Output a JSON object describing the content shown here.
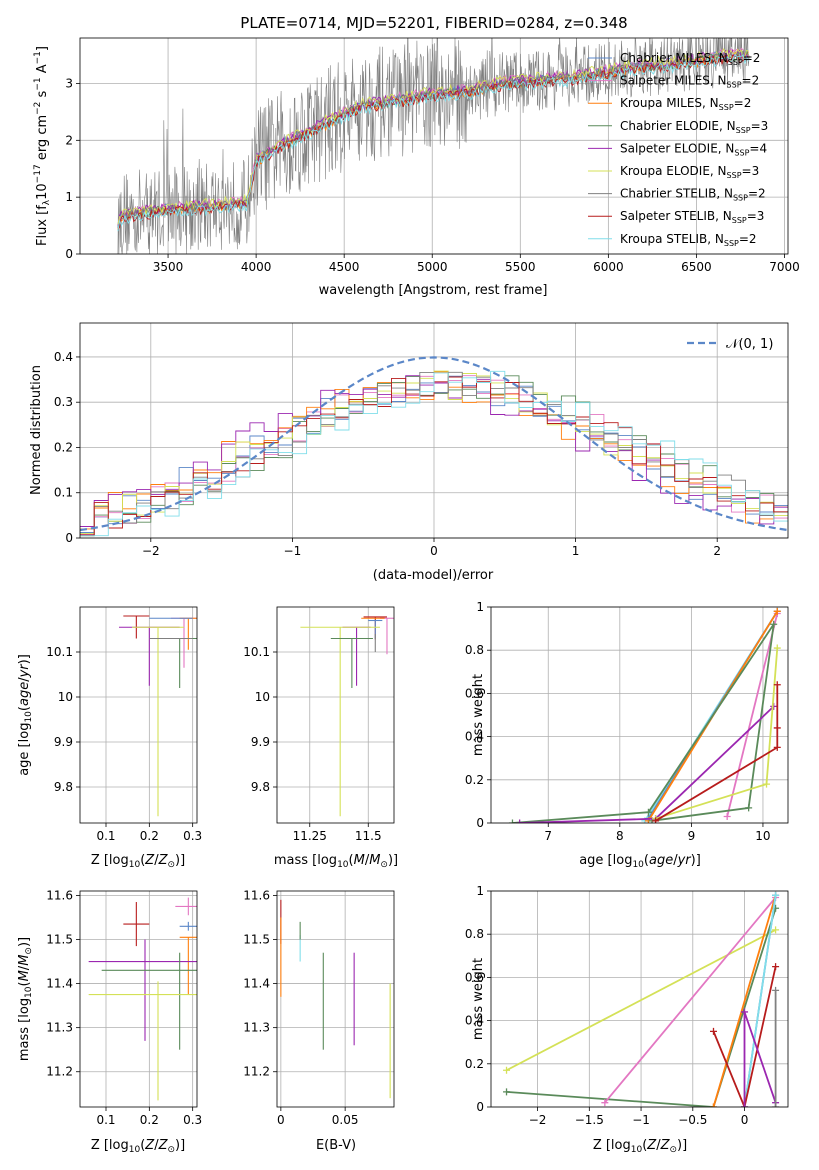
{
  "chart_data": [
    {
      "id": "spectrum",
      "type": "line",
      "title": "PLATE=0714, MJD=52201, FIBERID=0284, z=0.348",
      "xlabel": "wavelength [Angstrom, rest frame]",
      "ylabel": "Flux [fλ 10⁻¹⁷ erg cm⁻² s⁻¹ A⁻¹]",
      "xlim": [
        3000,
        7020
      ],
      "ylim": [
        0,
        3.8
      ],
      "xticks": [
        3500,
        4000,
        4500,
        5000,
        5500,
        6000,
        6500,
        7000
      ],
      "yticks": [
        0,
        1,
        2,
        3
      ],
      "data_range": [
        3215,
        6800
      ],
      "continuum": {
        "x": [
          3215,
          3250,
          3400,
          3600,
          3800,
          3950,
          4000,
          4200,
          4400,
          4600,
          4800,
          5000,
          5200,
          5400,
          5600,
          5800,
          6000,
          6200,
          6400,
          6600,
          6800
        ],
        "y": [
          0.55,
          0.68,
          0.74,
          0.8,
          0.85,
          0.9,
          1.65,
          2.0,
          2.3,
          2.6,
          2.7,
          2.8,
          2.85,
          3.0,
          3.05,
          3.1,
          3.2,
          3.3,
          3.35,
          3.45,
          3.5
        ]
      },
      "legend": [
        {
          "label": "Chabrier MILES, N",
          "sub": "SSP",
          "suffix": "=2",
          "color": "#5b87c8",
          "offset": 0.02
        },
        {
          "label": "Salpeter MILES, N",
          "sub": "SSP",
          "suffix": "=2",
          "color": "#e377c2",
          "offset": 0.05
        },
        {
          "label": "Kroupa MILES, N",
          "sub": "SSP",
          "suffix": "=2",
          "color": "#ff7f0e",
          "offset": -0.02
        },
        {
          "label": "Chabrier ELODIE, N",
          "sub": "SSP",
          "suffix": "=3",
          "color": "#5a8a5a",
          "offset": 0.0
        },
        {
          "label": "Salpeter ELODIE, N",
          "sub": "SSP",
          "suffix": "=4",
          "color": "#9b27b0",
          "offset": 0.04
        },
        {
          "label": "Kroupa ELODIE, N",
          "sub": "SSP",
          "suffix": "=3",
          "color": "#d4e157",
          "offset": 0.06
        },
        {
          "label": "Chabrier STELIB, N",
          "sub": "SSP",
          "suffix": "=2",
          "color": "#808080",
          "offset": 0.0
        },
        {
          "label": "Salpeter STELIB, N",
          "sub": "SSP",
          "suffix": "=3",
          "color": "#b71c1c",
          "offset": -0.04
        },
        {
          "label": "Kroupa STELIB, N",
          "sub": "SSP",
          "suffix": "=2",
          "color": "#80deea",
          "offset": -0.06
        }
      ]
    },
    {
      "id": "residuals",
      "type": "line",
      "xlabel": "(data-model)/error",
      "ylabel": "Normed distribution",
      "xlim": [
        -2.5,
        2.5
      ],
      "ylim": [
        0,
        0.475
      ],
      "xticks": [
        -2,
        -1,
        0,
        1,
        2
      ],
      "yticks": [
        0.0,
        0.1,
        0.2,
        0.3,
        0.4
      ],
      "gaussian_label": "𝒩(0, 1)",
      "gaussian_color": "#5b87c8",
      "grid": true,
      "legend_position": "top-right",
      "hist_peaks": [
        0.04,
        0.1,
        -0.06,
        0.2,
        -0.12,
        0.07,
        0.16,
        0.12,
        0.25
      ]
    },
    {
      "id": "age-vs-z",
      "type": "scatter",
      "xlabel": "Z [log₁₀(Z/Z⊙)]",
      "ylabel": "age  [log₁₀(age/yr)]",
      "xlim": [
        0.04,
        0.31
      ],
      "ylim": [
        9.72,
        10.2
      ],
      "xticks": [
        0.1,
        0.2,
        0.3
      ],
      "yticks": [
        9.8,
        9.9,
        10.0,
        10.1
      ],
      "points": [
        {
          "x": 0.17,
          "y": 10.18,
          "xerr": 0.03,
          "yerr": [
            0.05,
            0.0
          ],
          "color": "#b71c1c"
        },
        {
          "x": 0.28,
          "y": 10.175,
          "xerr": 0.03,
          "yerr": [
            0.11,
            0.0
          ],
          "color": "#e377c2"
        },
        {
          "x": 0.29,
          "y": 10.175,
          "xerr": 0.02,
          "yerr": [
            0.07,
            0.0
          ],
          "color": "#ff7f0e"
        },
        {
          "x": 0.25,
          "y": 10.175,
          "xerr": 0.05,
          "yerr": [
            0.0,
            0.0
          ],
          "color": "#5b87c8"
        },
        {
          "x": 0.2,
          "y": 10.155,
          "xerr": 0.07,
          "yerr": [
            0.13,
            0.0
          ],
          "color": "#9b27b0"
        },
        {
          "x": 0.22,
          "y": 10.155,
          "xerr": 0.06,
          "yerr": [
            0.42,
            0.0
          ],
          "color": "#d4e157"
        },
        {
          "x": 0.27,
          "y": 10.13,
          "xerr": 0.04,
          "yerr": [
            0.11,
            0.0
          ],
          "color": "#5a8a5a"
        },
        {
          "x": 0.25,
          "y": 10.13,
          "xerr": 0.05,
          "yerr": [
            0.0,
            0.0
          ],
          "color": "#808080"
        }
      ]
    },
    {
      "id": "age-vs-mass",
      "type": "scatter",
      "xlabel": "mass [log₁₀(M/M⊙)]",
      "ylabel": "",
      "xlim": [
        11.11,
        11.61
      ],
      "ylim": [
        9.72,
        10.2
      ],
      "xticks": [
        11.25,
        11.5
      ],
      "yticks": [
        9.8,
        9.9,
        10.0,
        10.1
      ],
      "points": [
        {
          "x": 11.53,
          "y": 10.178,
          "xerr": 0.05,
          "yerr": [
            0.05,
            0.0
          ],
          "color": "#b71c1c"
        },
        {
          "x": 11.58,
          "y": 10.175,
          "xerr": 0.03,
          "yerr": [
            0.08,
            0.0
          ],
          "color": "#e377c2"
        },
        {
          "x": 11.52,
          "y": 10.175,
          "xerr": 0.05,
          "yerr": [
            0.0,
            0.0
          ],
          "color": "#ff7f0e"
        },
        {
          "x": 11.53,
          "y": 10.17,
          "xerr": 0.03,
          "yerr": [
            0.04,
            0.0
          ],
          "color": "#5b87c8"
        },
        {
          "x": 11.45,
          "y": 10.155,
          "xerr": 0.06,
          "yerr": [
            0.13,
            0.0
          ],
          "color": "#9b27b0"
        },
        {
          "x": 11.38,
          "y": 10.155,
          "xerr": 0.17,
          "yerr": [
            0.42,
            0.0
          ],
          "color": "#d4e157"
        },
        {
          "x": 11.43,
          "y": 10.13,
          "xerr": 0.09,
          "yerr": [
            0.11,
            0.0
          ],
          "color": "#5a8a5a"
        },
        {
          "x": 11.53,
          "y": 10.14,
          "xerr": 0.0,
          "yerr": [
            0.04,
            0.0
          ],
          "color": "#808080"
        }
      ]
    },
    {
      "id": "weight-vs-age",
      "type": "line",
      "xlabel": "age  [log₁₀(age/yr)]",
      "ylabel": "mass weight",
      "xlim": [
        6.2,
        10.35
      ],
      "ylim": [
        0,
        1.0
      ],
      "xticks": [
        7,
        8,
        9,
        10
      ],
      "yticks": [
        0.0,
        0.2,
        0.4,
        0.6,
        0.8,
        1.0
      ],
      "grid": true,
      "series": [
        {
          "color": "#80deea",
          "x": [
            8.35,
            10.2
          ],
          "y": [
            0.01,
            0.98
          ]
        },
        {
          "color": "#5b87c8",
          "x": [
            8.4,
            10.2
          ],
          "y": [
            0.02,
            0.98
          ]
        },
        {
          "color": "#e377c2",
          "x": [
            9.5,
            10.2
          ],
          "y": [
            0.03,
            0.97
          ]
        },
        {
          "color": "#ff7f0e",
          "x": [
            8.4,
            10.2
          ],
          "y": [
            0.01,
            0.98
          ]
        },
        {
          "color": "#5a8a5a",
          "x": [
            6.5,
            8.4,
            10.15,
            9.8,
            8.45
          ],
          "y": [
            0.0,
            0.05,
            0.92,
            0.07,
            0.01
          ]
        },
        {
          "color": "#9b27b0",
          "x": [
            6.6,
            8.5,
            10.15
          ],
          "y": [
            0.0,
            0.02,
            0.54
          ]
        },
        {
          "color": "#d4e157",
          "x": [
            8.5,
            10.05,
            10.2
          ],
          "y": [
            0.02,
            0.18,
            0.81
          ]
        },
        {
          "color": "#b71c1c",
          "x": [
            8.5,
            10.2,
            10.2,
            10.2
          ],
          "y": [
            0.01,
            0.35,
            0.44,
            0.64
          ]
        }
      ]
    },
    {
      "id": "mass-vs-z",
      "type": "scatter",
      "xlabel": "Z [log₁₀(Z/Z⊙)]",
      "ylabel": "mass [log₁₀(M/M⊙)]",
      "xlim": [
        0.04,
        0.31
      ],
      "ylim": [
        11.12,
        11.61
      ],
      "xticks": [
        0.1,
        0.2,
        0.3
      ],
      "yticks": [
        11.2,
        11.3,
        11.4,
        11.5,
        11.6
      ],
      "points": [
        {
          "x": 0.17,
          "y": 11.535,
          "xerr": 0.03,
          "yerr": [
            0.05,
            0.05
          ],
          "color": "#b71c1c"
        },
        {
          "x": 0.29,
          "y": 11.575,
          "xerr": 0.03,
          "yerr": [
            0.02,
            0.02
          ],
          "color": "#e377c2"
        },
        {
          "x": 0.29,
          "y": 11.53,
          "xerr": 0.02,
          "yerr": [
            0.01,
            0.01
          ],
          "color": "#5b87c8"
        },
        {
          "x": 0.29,
          "y": 11.505,
          "xerr": 0.02,
          "yerr": [
            0.13,
            0.0
          ],
          "color": "#ff7f0e"
        },
        {
          "x": 0.19,
          "y": 11.45,
          "xerr": 0.13,
          "yerr": [
            0.18,
            0.05
          ],
          "color": "#9b27b0"
        },
        {
          "x": 0.27,
          "y": 11.43,
          "xerr": 0.18,
          "yerr": [
            0.18,
            0.04
          ],
          "color": "#5a8a5a"
        },
        {
          "x": 0.22,
          "y": 11.375,
          "xerr": 0.16,
          "yerr": [
            0.24,
            0.03
          ],
          "color": "#d4e157"
        }
      ]
    },
    {
      "id": "mass-vs-ebv",
      "type": "scatter",
      "xlabel": "E(B-V)",
      "ylabel": "",
      "xlim": [
        -0.003,
        0.088
      ],
      "ylim": [
        11.12,
        11.61
      ],
      "xticks": [
        0.0,
        0.05
      ],
      "yticks": [
        11.2,
        11.3,
        11.4,
        11.5,
        11.6
      ],
      "points": [
        {
          "x": 0.0,
          "y": 11.54,
          "yerr": [
            0.05,
            0.05
          ],
          "color": "#b71c1c"
        },
        {
          "x": 0.0,
          "y": 11.47,
          "yerr": [
            0.1,
            0.08
          ],
          "color": "#ff7f0e"
        },
        {
          "x": 0.015,
          "y": 11.49,
          "yerr": [
            0.04,
            0.02
          ],
          "color": "#80deea"
        },
        {
          "x": 0.015,
          "y": 11.52,
          "yerr": [
            0.02,
            0.02
          ],
          "color": "#5a8a5a"
        },
        {
          "x": 0.033,
          "y": 11.36,
          "yerr": [
            0.11,
            0.11
          ],
          "color": "#5a8a5a"
        },
        {
          "x": 0.057,
          "y": 11.36,
          "yerr": [
            0.1,
            0.11
          ],
          "color": "#9b27b0"
        },
        {
          "x": 0.085,
          "y": 11.27,
          "yerr": [
            0.13,
            0.13
          ],
          "color": "#d4e157"
        }
      ]
    },
    {
      "id": "weight-vs-z",
      "type": "line",
      "xlabel": "Z [log₁₀(Z/Z⊙)]",
      "ylabel": "mass weight",
      "xlim": [
        -2.45,
        0.42
      ],
      "ylim": [
        0,
        1.0
      ],
      "xticks": [
        -2.0,
        -1.5,
        -1.0,
        -0.5,
        0.0
      ],
      "yticks": [
        0.0,
        0.2,
        0.4,
        0.6,
        0.8,
        1.0
      ],
      "grid": true,
      "series": [
        {
          "color": "#d4e157",
          "x": [
            -2.3,
            0.3
          ],
          "y": [
            0.17,
            0.82
          ]
        },
        {
          "color": "#5a8a5a",
          "x": [
            -2.3,
            -0.3,
            0.3
          ],
          "y": [
            0.07,
            0.0,
            0.92
          ]
        },
        {
          "color": "#e377c2",
          "x": [
            -1.35,
            0.3
          ],
          "y": [
            0.02,
            0.97
          ]
        },
        {
          "color": "#ff7f0e",
          "x": [
            -0.3,
            0.3
          ],
          "y": [
            0.0,
            0.98
          ]
        },
        {
          "color": "#5b87c8",
          "x": [
            0.0,
            0.3
          ],
          "y": [
            0.0,
            0.98
          ]
        },
        {
          "color": "#80deea",
          "x": [
            0.0,
            0.3
          ],
          "y": [
            0.0,
            0.98
          ]
        },
        {
          "color": "#b71c1c",
          "x": [
            -0.3,
            0.0,
            0.3
          ],
          "y": [
            0.35,
            0.0,
            0.65
          ]
        },
        {
          "color": "#9b27b0",
          "x": [
            0.0,
            0.0,
            0.3
          ],
          "y": [
            0.0,
            0.44,
            0.02
          ]
        },
        {
          "color": "#808080",
          "x": [
            0.3,
            0.3
          ],
          "y": [
            0.0,
            0.54
          ]
        }
      ]
    }
  ]
}
